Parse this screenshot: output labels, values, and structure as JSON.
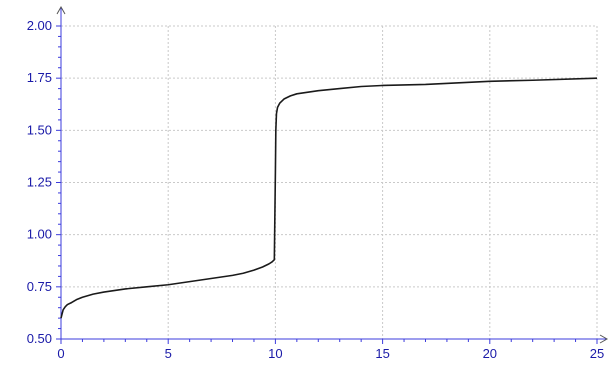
{
  "chart_data": {
    "type": "line",
    "title": "",
    "xlabel": "",
    "ylabel": "",
    "xlim": [
      0,
      25
    ],
    "ylim": [
      0.5,
      2.0
    ],
    "x_ticks": [
      0,
      5,
      10,
      15,
      20,
      25
    ],
    "y_ticks": [
      0.5,
      0.75,
      1.0,
      1.25,
      1.5,
      1.75,
      2.0
    ],
    "x_tick_labels": [
      "0",
      "5",
      "10",
      "15",
      "20",
      "25"
    ],
    "y_tick_labels": [
      "0.50",
      "0.75",
      "1.00",
      "1.25",
      "1.50",
      "1.75",
      "2.00"
    ],
    "grid": true,
    "series": [
      {
        "color": "#1a1a1a",
        "x": [
          0,
          0.05,
          0.1,
          0.2,
          0.3,
          0.5,
          0.75,
          1,
          1.5,
          2,
          3,
          4,
          5,
          6,
          7,
          8,
          8.5,
          9,
          9.4,
          9.7,
          9.85,
          9.95,
          10.0,
          10.02,
          10.05,
          10.1,
          10.2,
          10.4,
          10.7,
          11,
          12,
          13,
          14,
          15,
          17,
          20,
          22,
          25
        ],
        "y": [
          0.6,
          0.62,
          0.64,
          0.655,
          0.665,
          0.675,
          0.69,
          0.7,
          0.715,
          0.725,
          0.74,
          0.75,
          0.76,
          0.775,
          0.79,
          0.805,
          0.815,
          0.83,
          0.845,
          0.86,
          0.87,
          0.88,
          1.3,
          1.5,
          1.58,
          1.61,
          1.63,
          1.65,
          1.665,
          1.675,
          1.69,
          1.7,
          1.71,
          1.715,
          1.72,
          1.735,
          1.74,
          1.75
        ]
      }
    ]
  }
}
